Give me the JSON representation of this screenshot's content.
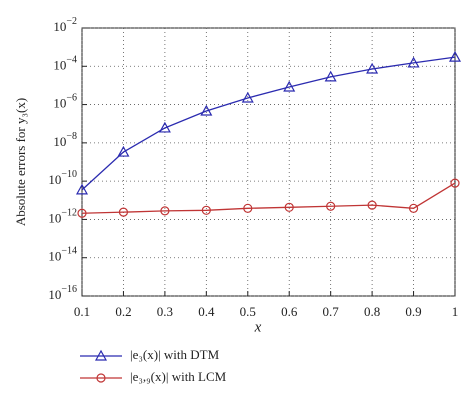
{
  "chart_data": {
    "type": "line",
    "y_label": "Absolute errors for y₃(x)",
    "x_label": "x",
    "x": [
      0.1,
      0.2,
      0.3,
      0.4,
      0.5,
      0.6,
      0.7,
      0.8,
      0.9,
      1
    ],
    "series": [
      {
        "name": "|e₃(x)| with DTM",
        "color": "#2b2bb0",
        "marker": "triangle",
        "values": [
          3.5e-11,
          3.3e-09,
          6e-08,
          4.6e-07,
          2.2e-06,
          8.3e-06,
          2.8e-05,
          7.2e-05,
          0.00015,
          0.0003
        ]
      },
      {
        "name": "|e₃,₉(x)| with LCM",
        "color": "#c03535",
        "marker": "circle",
        "values": [
          2.1e-12,
          2.4e-12,
          2.8e-12,
          3e-12,
          3.8e-12,
          4.3e-12,
          4.9e-12,
          5.6e-12,
          3.8e-12,
          7.9e-11
        ]
      }
    ],
    "xlim": [
      0.1,
      1
    ],
    "xticks": [
      0.1,
      0.2,
      0.3,
      0.4,
      0.5,
      0.6,
      0.7,
      0.8,
      0.9,
      1
    ],
    "ylim": [
      1e-16,
      0.01
    ],
    "yticks": [
      {
        "value": 0.01,
        "label": "10−2"
      },
      {
        "value": 0.0001,
        "label": "10−4"
      },
      {
        "value": 1e-06,
        "label": "10−6"
      },
      {
        "value": 1e-08,
        "label": "10−8"
      },
      {
        "value": 1e-10,
        "label": "10−10"
      },
      {
        "value": 1e-12,
        "label": "10−12"
      },
      {
        "value": 1e-14,
        "label": "10−14"
      },
      {
        "value": 1e-16,
        "label": "10−16"
      }
    ],
    "log_y": true,
    "grid": true,
    "legend": "bottom"
  }
}
